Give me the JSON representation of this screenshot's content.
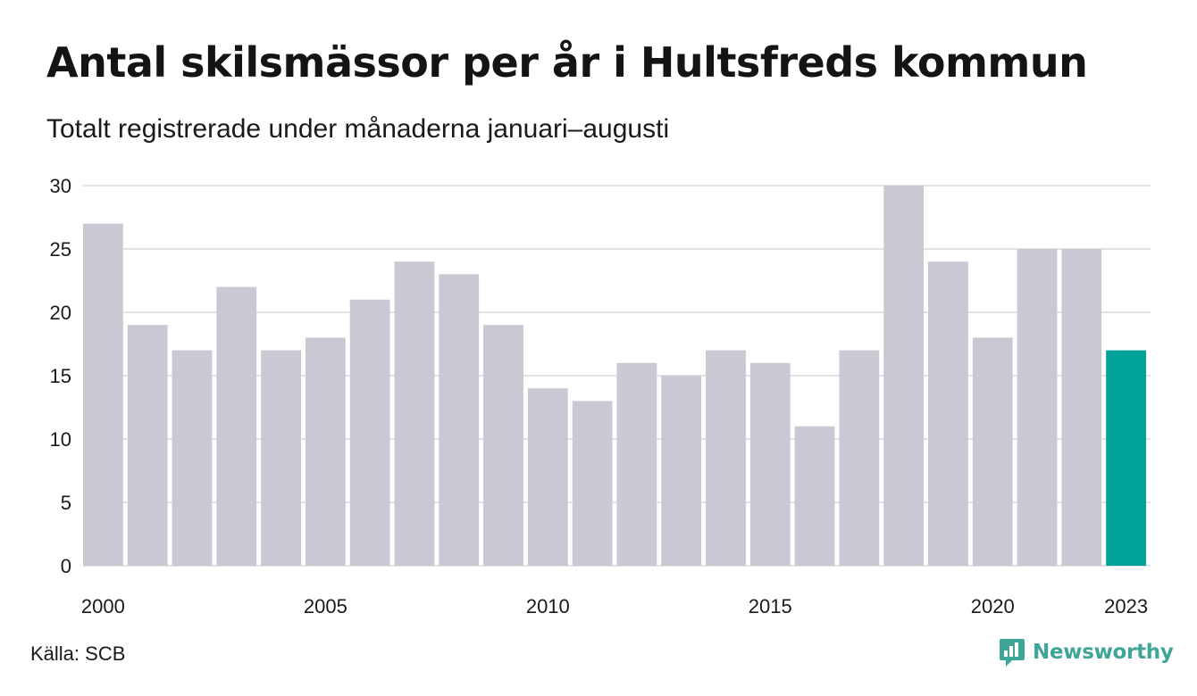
{
  "title": "Antal skilsmässor per år i Hultsfreds kommun",
  "subtitle": "Totalt registrerade under månaderna januari–augusti",
  "source": "Källa: SCB",
  "brand": {
    "name": "Newsworthy",
    "icon": "newsworthy-logo-icon",
    "color": "#3fa597"
  },
  "chart_data": {
    "type": "bar",
    "categories": [
      "2000",
      "2001",
      "2002",
      "2003",
      "2004",
      "2005",
      "2006",
      "2007",
      "2008",
      "2009",
      "2010",
      "2011",
      "2012",
      "2013",
      "2014",
      "2015",
      "2016",
      "2017",
      "2018",
      "2019",
      "2020",
      "2021",
      "2022",
      "2023"
    ],
    "values": [
      27,
      19,
      17,
      22,
      17,
      18,
      21,
      24,
      23,
      19,
      14,
      13,
      16,
      15,
      17,
      16,
      11,
      17,
      30,
      24,
      18,
      25,
      25,
      17
    ],
    "x_tick_labels": [
      "2000",
      "2005",
      "2010",
      "2015",
      "2020",
      "2023"
    ],
    "y_ticks": [
      0,
      5,
      10,
      15,
      20,
      25,
      30
    ],
    "ylim": [
      0,
      30
    ],
    "grid": true,
    "colors": {
      "default": "#c9c8d3",
      "highlight": "#00a39a",
      "grid": "#e3e3e3"
    },
    "highlight_category": "2023"
  }
}
